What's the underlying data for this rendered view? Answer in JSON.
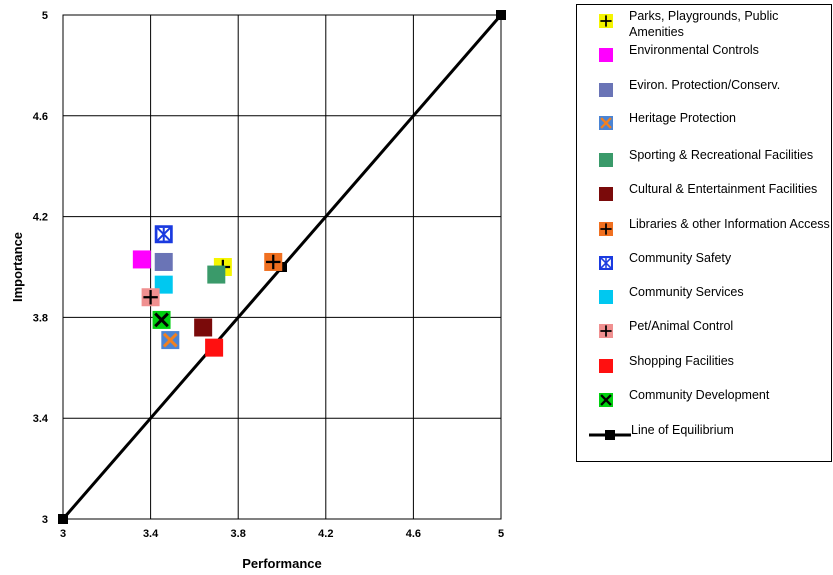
{
  "chart_data": {
    "type": "scatter",
    "title": "",
    "xlabel": "Performance",
    "ylabel": "Importance",
    "xlim": [
      3,
      5
    ],
    "ylim": [
      3,
      5
    ],
    "x_ticks": [
      "3",
      "3.4",
      "3.8",
      "4.2",
      "4.6",
      "5"
    ],
    "y_ticks": [
      "3",
      "3.4",
      "3.8",
      "4.2",
      "4.6",
      "5"
    ],
    "grid": true,
    "legend_position": "right",
    "series": [
      {
        "name": "Parks, Playgrounds, Public Amenities",
        "marker": "plus",
        "color": "#f5f500",
        "x": 3.73,
        "y": 4.0
      },
      {
        "name": "Environmental Controls",
        "marker": "square",
        "color": "#ff00ff",
        "x": 3.36,
        "y": 4.03
      },
      {
        "name": "Eviron. Protection/Conserv.",
        "marker": "square",
        "color": "#6a74b6",
        "x": 3.46,
        "y": 4.02
      },
      {
        "name": "Heritage Protection",
        "marker": "x",
        "color": "#4a84d4",
        "x": 3.49,
        "y": 3.71
      },
      {
        "name": "Sporting & Recreational Facilities",
        "marker": "square",
        "color": "#3a9a6a",
        "x": 3.7,
        "y": 3.97
      },
      {
        "name": "Cultural & Entertainment Facilities",
        "marker": "square",
        "color": "#7a0a0a",
        "x": 3.64,
        "y": 3.76
      },
      {
        "name": "Libraries & other Information Access",
        "marker": "plus",
        "color": "#f07020",
        "x": 3.96,
        "y": 4.02
      },
      {
        "name": "Community Safety",
        "marker": "star",
        "color": "#1a3ae0",
        "x": 3.46,
        "y": 4.13
      },
      {
        "name": "Community Services",
        "marker": "square",
        "color": "#00c8f0",
        "x": 3.46,
        "y": 3.93
      },
      {
        "name": "Pet/Animal Control",
        "marker": "plus",
        "color": "#f09090",
        "x": 3.4,
        "y": 3.88
      },
      {
        "name": "Shopping Facilities",
        "marker": "square",
        "color": "#ff1010",
        "x": 3.69,
        "y": 3.68
      },
      {
        "name": "Community Development",
        "marker": "x",
        "color": "#00d010",
        "x": 3.45,
        "y": 3.79
      }
    ],
    "line": {
      "name": "Line of Equilibrium",
      "color": "#000000",
      "x": [
        3,
        4,
        5
      ],
      "y": [
        3,
        4,
        5
      ]
    }
  }
}
